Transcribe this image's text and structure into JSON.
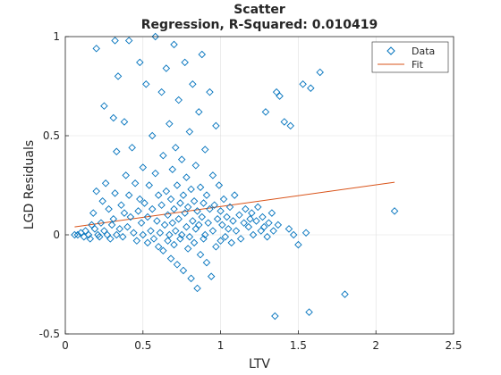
{
  "chart_data": {
    "type": "scatter",
    "title": "Scatter",
    "subtitle": "Regression, R-Squared: 0.010419",
    "xlabel": "LTV",
    "ylabel": "LGD Residuals",
    "xlim": [
      0,
      2.5
    ],
    "ylim": [
      -0.5,
      1
    ],
    "xticks": [
      "0",
      "0.5",
      "1",
      "1.5",
      "2",
      "2.5"
    ],
    "yticks": [
      "-0.5",
      "0",
      "0.5",
      "1"
    ],
    "grid": true,
    "legend_position": "top-right",
    "series": [
      {
        "name": "Data",
        "marker": "diamond",
        "color": "#0072BD",
        "points": [
          [
            0.06,
            0.0
          ],
          [
            0.08,
            0.0
          ],
          [
            0.1,
            0.01
          ],
          [
            0.12,
            -0.01
          ],
          [
            0.13,
            0.02
          ],
          [
            0.15,
            0.0
          ],
          [
            0.16,
            -0.02
          ],
          [
            0.17,
            0.05
          ],
          [
            0.18,
            0.11
          ],
          [
            0.19,
            0.03
          ],
          [
            0.2,
            0.94
          ],
          [
            0.2,
            0.22
          ],
          [
            0.21,
            0.0
          ],
          [
            0.22,
            -0.01
          ],
          [
            0.23,
            0.06
          ],
          [
            0.24,
            0.17
          ],
          [
            0.25,
            0.65
          ],
          [
            0.25,
            0.02
          ],
          [
            0.26,
            0.26
          ],
          [
            0.27,
            0.0
          ],
          [
            0.28,
            0.13
          ],
          [
            0.29,
            -0.02
          ],
          [
            0.3,
            0.05
          ],
          [
            0.31,
            0.59
          ],
          [
            0.31,
            0.08
          ],
          [
            0.32,
            0.98
          ],
          [
            0.32,
            0.21
          ],
          [
            0.33,
            0.42
          ],
          [
            0.33,
            0.0
          ],
          [
            0.34,
            0.8
          ],
          [
            0.35,
            0.03
          ],
          [
            0.36,
            0.15
          ],
          [
            0.37,
            -0.01
          ],
          [
            0.38,
            0.11
          ],
          [
            0.38,
            0.57
          ],
          [
            0.39,
            0.3
          ],
          [
            0.4,
            0.04
          ],
          [
            0.41,
            0.98
          ],
          [
            0.41,
            0.2
          ],
          [
            0.42,
            0.09
          ],
          [
            0.43,
            0.44
          ],
          [
            0.44,
            0.01
          ],
          [
            0.45,
            0.26
          ],
          [
            0.46,
            -0.03
          ],
          [
            0.47,
            0.12
          ],
          [
            0.48,
            0.18
          ],
          [
            0.48,
            0.87
          ],
          [
            0.49,
            0.06
          ],
          [
            0.5,
            0.34
          ],
          [
            0.5,
            0.0
          ],
          [
            0.51,
            0.16
          ],
          [
            0.52,
            0.76
          ],
          [
            0.53,
            -0.04
          ],
          [
            0.53,
            0.09
          ],
          [
            0.54,
            0.25
          ],
          [
            0.55,
            0.02
          ],
          [
            0.56,
            0.5
          ],
          [
            0.56,
            0.13
          ],
          [
            0.57,
            -0.02
          ],
          [
            0.58,
            0.31
          ],
          [
            0.58,
            1.0
          ],
          [
            0.59,
            0.07
          ],
          [
            0.6,
            0.2
          ],
          [
            0.6,
            -0.06
          ],
          [
            0.61,
            0.01
          ],
          [
            0.62,
            0.72
          ],
          [
            0.62,
            0.15
          ],
          [
            0.63,
            0.4
          ],
          [
            0.63,
            -0.08
          ],
          [
            0.64,
            0.05
          ],
          [
            0.65,
            0.22
          ],
          [
            0.65,
            0.84
          ],
          [
            0.66,
            -0.03
          ],
          [
            0.66,
            0.1
          ],
          [
            0.67,
            0.56
          ],
          [
            0.67,
            0.0
          ],
          [
            0.68,
            0.18
          ],
          [
            0.68,
            -0.12
          ],
          [
            0.69,
            0.33
          ],
          [
            0.69,
            0.06
          ],
          [
            0.7,
            0.96
          ],
          [
            0.7,
            0.13
          ],
          [
            0.7,
            -0.05
          ],
          [
            0.71,
            0.44
          ],
          [
            0.71,
            0.02
          ],
          [
            0.72,
            0.25
          ],
          [
            0.72,
            -0.15
          ],
          [
            0.73,
            0.08
          ],
          [
            0.73,
            0.68
          ],
          [
            0.74,
            0.16
          ],
          [
            0.74,
            -0.02
          ],
          [
            0.75,
            0.38
          ],
          [
            0.75,
            0.0
          ],
          [
            0.76,
            0.2
          ],
          [
            0.76,
            -0.18
          ],
          [
            0.77,
            0.11
          ],
          [
            0.77,
            0.87
          ],
          [
            0.78,
            0.04
          ],
          [
            0.78,
            0.29
          ],
          [
            0.79,
            -0.07
          ],
          [
            0.79,
            0.14
          ],
          [
            0.8,
            0.52
          ],
          [
            0.8,
            -0.01
          ],
          [
            0.81,
            0.23
          ],
          [
            0.81,
            -0.22
          ],
          [
            0.82,
            0.07
          ],
          [
            0.82,
            0.76
          ],
          [
            0.83,
            0.17
          ],
          [
            0.83,
            -0.04
          ],
          [
            0.84,
            0.35
          ],
          [
            0.84,
            0.03
          ],
          [
            0.85,
            0.12
          ],
          [
            0.85,
            -0.27
          ],
          [
            0.86,
            0.62
          ],
          [
            0.86,
            0.05
          ],
          [
            0.87,
            0.24
          ],
          [
            0.87,
            -0.1
          ],
          [
            0.88,
            0.09
          ],
          [
            0.88,
            0.91
          ],
          [
            0.89,
            0.16
          ],
          [
            0.89,
            -0.02
          ],
          [
            0.9,
            0.43
          ],
          [
            0.9,
            0.0
          ],
          [
            0.91,
            0.2
          ],
          [
            0.91,
            -0.14
          ],
          [
            0.92,
            0.06
          ],
          [
            0.93,
            0.72
          ],
          [
            0.93,
            0.13
          ],
          [
            0.94,
            -0.21
          ],
          [
            0.95,
            0.3
          ],
          [
            0.95,
            0.02
          ],
          [
            0.96,
            0.15
          ],
          [
            0.97,
            -0.06
          ],
          [
            0.97,
            0.55
          ],
          [
            0.98,
            0.08
          ],
          [
            0.99,
            0.25
          ],
          [
            1.0,
            -0.03
          ],
          [
            1.0,
            0.12
          ],
          [
            1.01,
            0.05
          ],
          [
            1.02,
            0.18
          ],
          [
            1.03,
            -0.01
          ],
          [
            1.04,
            0.09
          ],
          [
            1.05,
            0.03
          ],
          [
            1.06,
            0.14
          ],
          [
            1.07,
            -0.04
          ],
          [
            1.08,
            0.07
          ],
          [
            1.09,
            0.2
          ],
          [
            1.1,
            0.02
          ],
          [
            1.12,
            0.1
          ],
          [
            1.13,
            -0.02
          ],
          [
            1.15,
            0.06
          ],
          [
            1.16,
            0.13
          ],
          [
            1.18,
            0.04
          ],
          [
            1.19,
            0.08
          ],
          [
            1.2,
            0.11
          ],
          [
            1.21,
            0.0
          ],
          [
            1.23,
            0.07
          ],
          [
            1.24,
            0.14
          ],
          [
            1.26,
            0.02
          ],
          [
            1.27,
            0.09
          ],
          [
            1.28,
            0.04
          ],
          [
            1.29,
            0.62
          ],
          [
            1.3,
            -0.01
          ],
          [
            1.31,
            0.06
          ],
          [
            1.33,
            0.11
          ],
          [
            1.34,
            0.02
          ],
          [
            1.35,
            -0.41
          ],
          [
            1.36,
            0.72
          ],
          [
            1.37,
            0.05
          ],
          [
            1.38,
            0.7
          ],
          [
            1.41,
            0.57
          ],
          [
            1.44,
            0.03
          ],
          [
            1.45,
            0.55
          ],
          [
            1.47,
            0.0
          ],
          [
            1.5,
            -0.05
          ],
          [
            1.53,
            0.76
          ],
          [
            1.55,
            0.01
          ],
          [
            1.57,
            -0.39
          ],
          [
            1.58,
            0.74
          ],
          [
            1.64,
            0.82
          ],
          [
            1.8,
            -0.3
          ],
          [
            2.12,
            0.12
          ]
        ]
      },
      {
        "name": "Fit",
        "type": "line",
        "color": "#D95319",
        "points": [
          [
            0.06,
            0.04
          ],
          [
            2.12,
            0.265
          ]
        ]
      }
    ]
  }
}
